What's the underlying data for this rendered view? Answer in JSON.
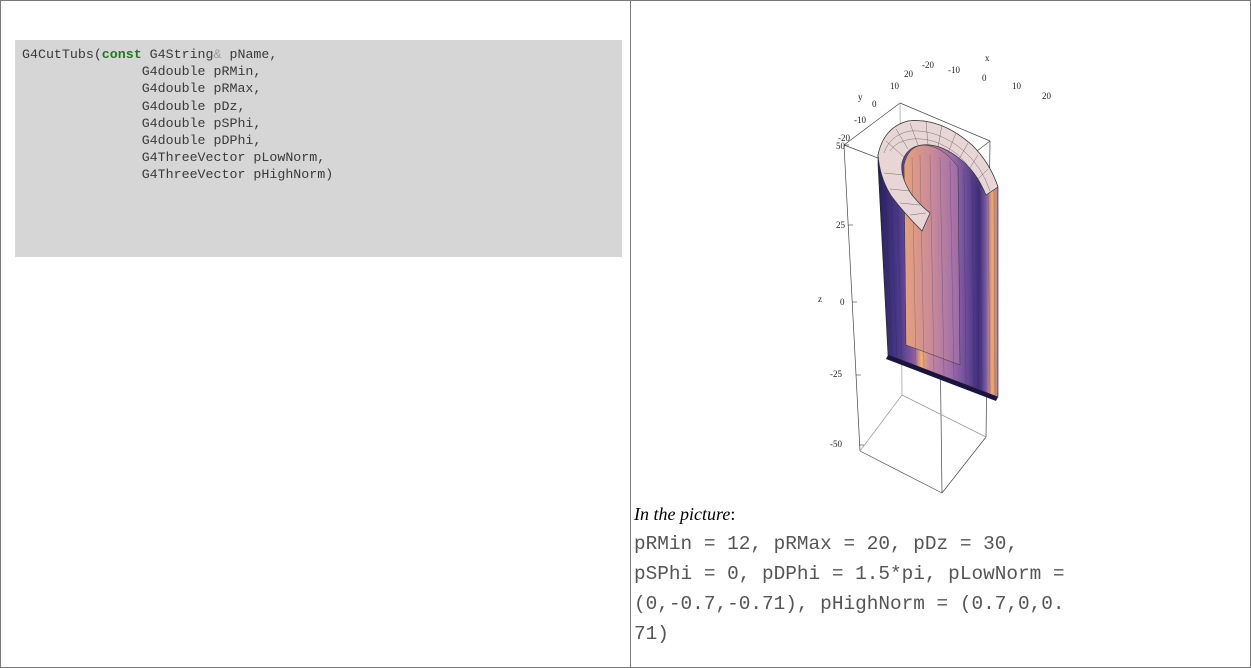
{
  "code": {
    "lines": [
      {
        "head": "G4CutTubs(",
        "keyword": "const",
        "type": " G4String",
        "amp": "&",
        "rest": " pName,"
      },
      {
        "text": "               G4double pRMin,"
      },
      {
        "text": "               G4double pRMax,"
      },
      {
        "text": "               G4double pDz,"
      },
      {
        "text": "               G4double pSPhi,"
      },
      {
        "text": "               G4double pDPhi,"
      },
      {
        "text": "               G4ThreeVector pLowNorm,"
      },
      {
        "text": "               G4ThreeVector pHighNorm)"
      }
    ],
    "colors": {
      "background": "#d6d6d6",
      "keyword": "#1f7a1f",
      "text": "#3a3a3a"
    }
  },
  "figure": {
    "axis_labels": {
      "x": "x",
      "y": "y",
      "z": "z"
    },
    "x_ticks": [
      "-20",
      "-10",
      "0",
      "10",
      "20"
    ],
    "y_ticks": [
      "20",
      "10",
      "0",
      "-10",
      "-20"
    ],
    "z_ticks": [
      "50",
      "25",
      "0",
      "-25",
      "-50"
    ]
  },
  "caption": {
    "label": "In the picture",
    "colon": ":",
    "lines": [
      "pRMin = 12, pRMax = 20, pDz = 30,",
      "pSPhi = 0, pDPhi = 1.5*pi, pLowNorm =",
      "(0,-0.7,-0.71), pHighNorm = (0.7,0,0.",
      "71)"
    ]
  }
}
